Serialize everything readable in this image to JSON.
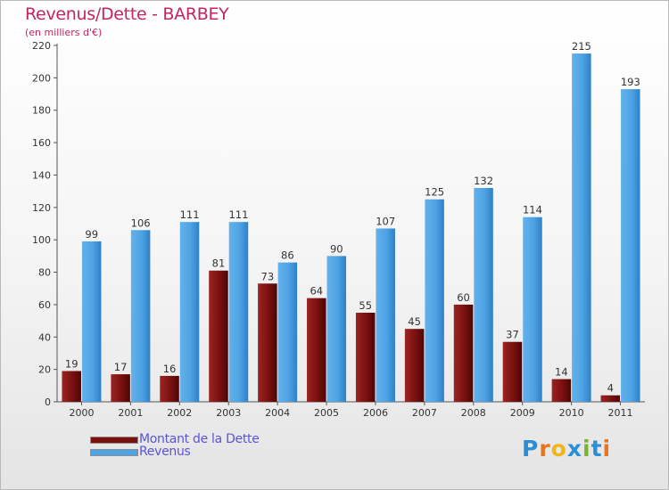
{
  "title": "Revenus/Dette - BARBEY",
  "subtitle": "(en milliers d'€)",
  "colors": {
    "dette": "#7a1010",
    "revenus": "#4ea3e4",
    "title": "#c2255f",
    "legend_text": "#5a54d8"
  },
  "legend": [
    {
      "label": "Montant de la Dette",
      "color": "#7a1010"
    },
    {
      "label": "Revenus",
      "color": "#4ea3e4"
    }
  ],
  "logo": {
    "letters": [
      "P",
      "r",
      "o",
      "x",
      "i",
      "t",
      "i"
    ],
    "colors": [
      "#2a8fd6",
      "#e8741c",
      "#f2b517",
      "#2a8fd6",
      "#79b531",
      "#2a8fd6",
      "#e8741c"
    ]
  },
  "chart_data": {
    "type": "bar",
    "categories": [
      "2000",
      "2001",
      "2002",
      "2003",
      "2004",
      "2005",
      "2006",
      "2007",
      "2008",
      "2009",
      "2010",
      "2011"
    ],
    "series": [
      {
        "name": "Montant de la Dette",
        "values": [
          19,
          17,
          16,
          81,
          73,
          64,
          55,
          45,
          60,
          37,
          14,
          4
        ]
      },
      {
        "name": "Revenus",
        "values": [
          99,
          106,
          111,
          111,
          86,
          90,
          107,
          125,
          132,
          114,
          215,
          193
        ]
      }
    ],
    "yticks": [
      0,
      20,
      40,
      60,
      80,
      100,
      120,
      140,
      160,
      180,
      200,
      220
    ],
    "ylim": [
      0,
      220
    ],
    "grid": false,
    "legend_position": "bottom-left"
  }
}
